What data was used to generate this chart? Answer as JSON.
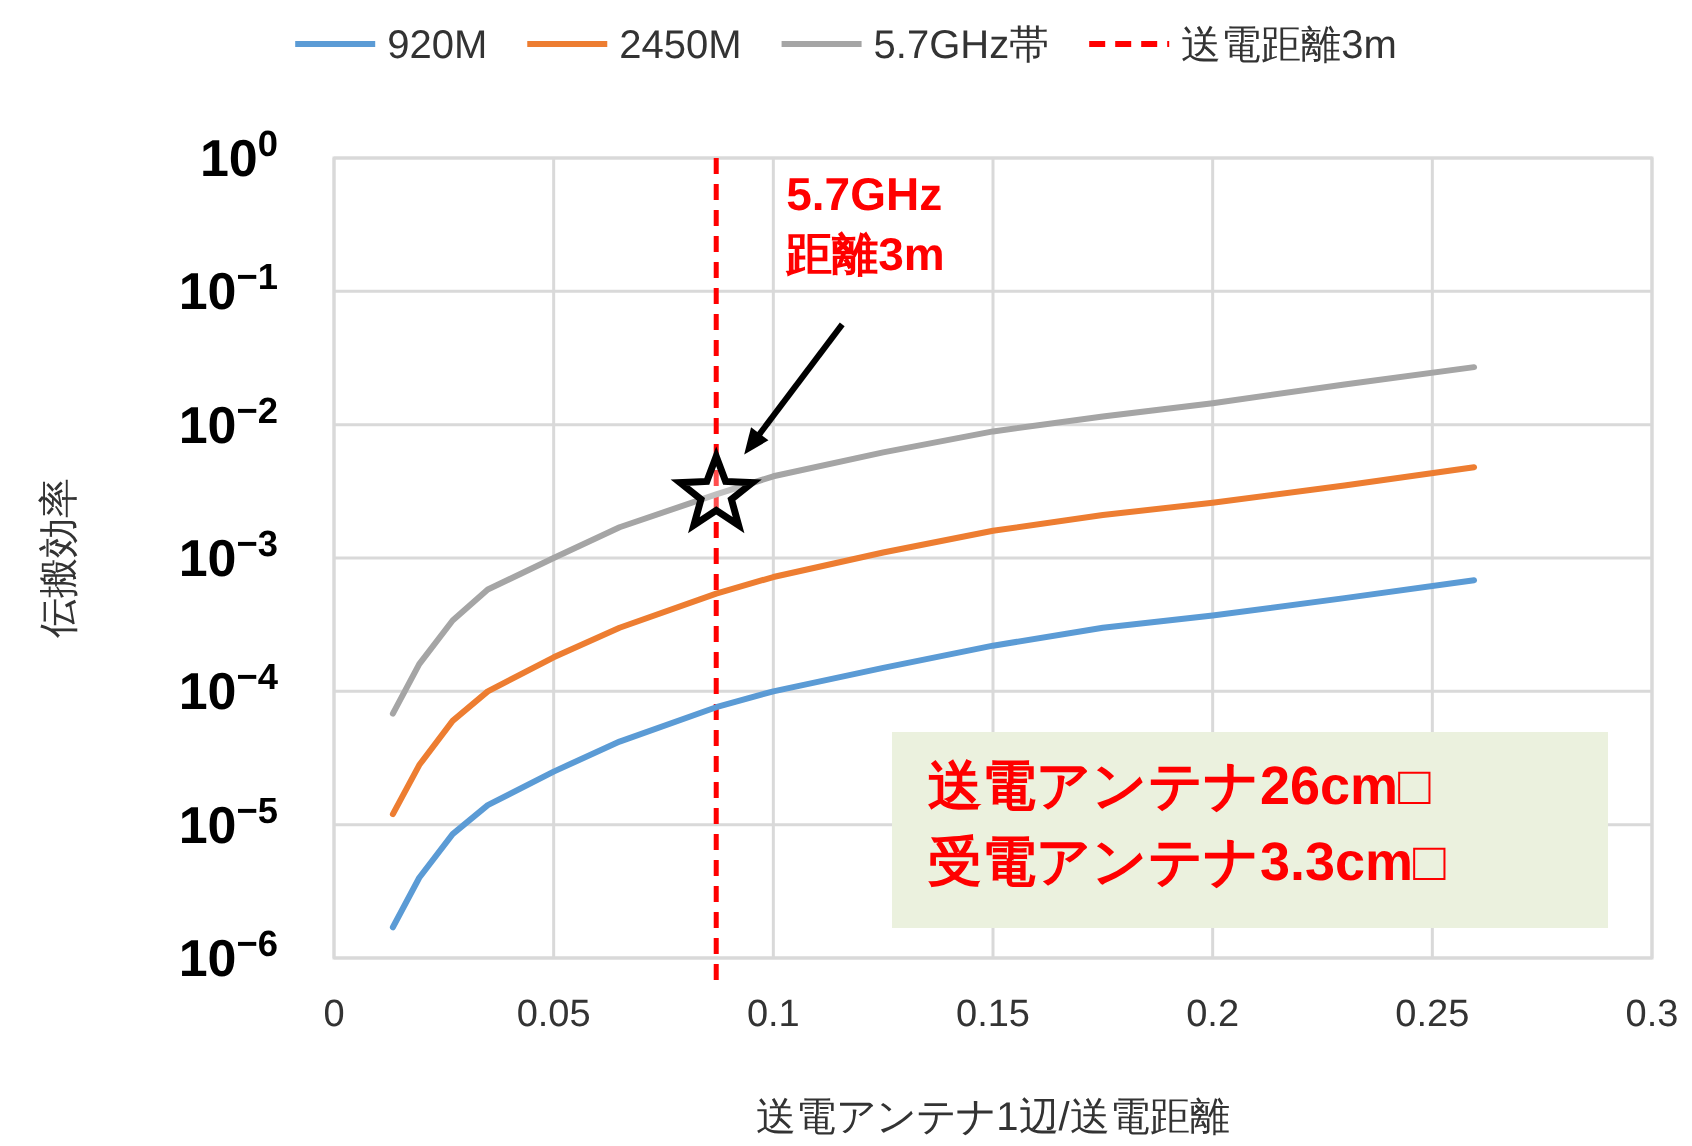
{
  "chart_data": {
    "type": "line",
    "xlabel": "送電アンテナ1辺/送電距離",
    "ylabel": "伝搬効率",
    "log": "y",
    "grid": true,
    "legend": "top",
    "line_style": "solid",
    "marker": "none",
    "xlim": [
      0,
      0.3
    ],
    "xticks": [
      0,
      0.05,
      0.1,
      0.15,
      0.2,
      0.25,
      0.3
    ],
    "ylim": [
      1e-06,
      1
    ],
    "yticks": [
      {
        "value": 1,
        "label": "10$^{0}$"
      },
      {
        "value": 0.1,
        "label": "10$^{−1}$"
      },
      {
        "value": 0.01,
        "label": "10$^{−2}$"
      },
      {
        "value": 0.001,
        "label": "10$^{−3}$"
      },
      {
        "value": 0.0001,
        "label": "10$^{−4}$"
      },
      {
        "value": 1e-05,
        "label": "10$^{−5}$"
      },
      {
        "value": 1e-06,
        "label": "10$^{−6}$"
      }
    ],
    "x": [
      0.0134,
      0.0194,
      0.027,
      0.035,
      0.05,
      0.065,
      0.087,
      0.1,
      0.125,
      0.15,
      0.175,
      0.2,
      0.23,
      0.2595
    ],
    "series": [
      {
        "name": "920M",
        "color": "#5b9bd5",
        "values": [
          1.7e-06,
          4e-06,
          8.5e-06,
          1.4e-05,
          2.5e-05,
          4.2e-05,
          7.6e-05,
          0.0001,
          0.00015,
          0.00022,
          0.0003,
          0.00037,
          0.0005,
          0.00068
        ]
      },
      {
        "name": "2450M",
        "color": "#ed7d31",
        "values": [
          1.2e-05,
          2.8e-05,
          6e-05,
          0.0001,
          0.00018,
          0.0003,
          0.00054,
          0.00072,
          0.0011,
          0.0016,
          0.0021,
          0.0026,
          0.0035,
          0.0048
        ]
      },
      {
        "name": "5.7GHz帯",
        "color": "#a5a5a5",
        "values": [
          6.8e-05,
          0.00016,
          0.00034,
          0.00058,
          0.001,
          0.0017,
          0.003,
          0.0041,
          0.0062,
          0.0089,
          0.0115,
          0.0145,
          0.02,
          0.027
        ]
      },
      {
        "type": "scatter",
        "marker": "star",
        "color": "#000000",
        "x": [
          0.087
        ],
        "values": [
          0.003
        ]
      }
    ],
    "ref_lines": [
      {
        "axis": "x",
        "value": 0.087,
        "label": "送電距離3m",
        "color": "#ff0000",
        "line_style": "dashed"
      }
    ],
    "annotations": [
      "5.7GHz\n距離3m",
      "送電アンテナ26cm□\n受電アンテナ3.3cm□"
    ]
  }
}
